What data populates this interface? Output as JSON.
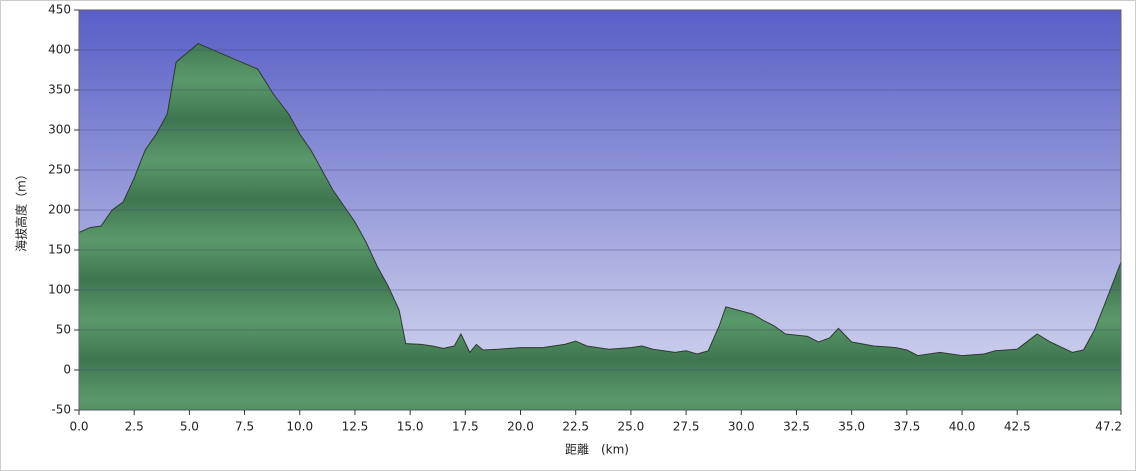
{
  "chart_data": {
    "type": "area",
    "x_label": "距離　(km)",
    "y_label": "海拔高度（m）",
    "color": "#4f8a5c",
    "line_color": "#2d3a2f",
    "grid": true,
    "xlim": [
      0,
      47.2
    ],
    "ylim": [
      -50,
      450
    ],
    "xticks": [
      {
        "value": 0,
        "label": "0.0"
      },
      2.5,
      {
        "value": 5,
        "label": "5.0"
      },
      7.5,
      {
        "value": 10,
        "label": "10.0"
      },
      12.5,
      {
        "value": 15,
        "label": "15.0"
      },
      17.5,
      {
        "value": 20,
        "label": "20.0"
      },
      22.5,
      {
        "value": 25,
        "label": "25.0"
      },
      27.5,
      {
        "value": 30,
        "label": "30.0"
      },
      32.5,
      {
        "value": 35,
        "label": "35.0"
      },
      37.5,
      {
        "value": 40,
        "label": "40.0"
      },
      42.5,
      47.2
    ],
    "yticks": [
      -50,
      0,
      50,
      100,
      150,
      200,
      250,
      300,
      350,
      400,
      450
    ],
    "x": [
      0,
      0.5,
      1.0,
      1.5,
      2.0,
      2.5,
      3.0,
      3.5,
      4.0,
      4.4,
      5.4,
      8.1,
      8.8,
      9.5,
      10.0,
      10.5,
      11.0,
      11.5,
      12.0,
      12.5,
      13.0,
      13.5,
      14.0,
      14.5,
      14.8,
      15.5,
      16.0,
      16.5,
      17.0,
      17.3,
      17.7,
      18.0,
      18.3,
      19.0,
      20.0,
      21.0,
      22.0,
      22.5,
      23.0,
      24.0,
      25.0,
      25.5,
      26.0,
      27.0,
      27.5,
      28.0,
      28.5,
      29.0,
      29.3,
      30.5,
      31.0,
      31.5,
      32.0,
      33.0,
      33.5,
      34.0,
      34.4,
      35.0,
      36.0,
      37.0,
      37.5,
      38.0,
      39.0,
      40.0,
      41.0,
      41.5,
      42.5,
      43.4,
      44.0,
      45.0,
      45.5,
      46.0,
      46.5,
      47.2
    ],
    "values": [
      172,
      178,
      180,
      200,
      210,
      240,
      275,
      295,
      320,
      385,
      408,
      376,
      345,
      320,
      295,
      275,
      250,
      225,
      205,
      185,
      160,
      130,
      105,
      75,
      33,
      32,
      30,
      27,
      30,
      45,
      22,
      32,
      25,
      26,
      28,
      28,
      32,
      36,
      30,
      26,
      28,
      30,
      26,
      22,
      24,
      20,
      24,
      55,
      79,
      70,
      62,
      55,
      45,
      42,
      35,
      40,
      52,
      35,
      30,
      28,
      25,
      18,
      22,
      18,
      20,
      24,
      26,
      45,
      35,
      22,
      25,
      50,
      85,
      135
    ]
  }
}
